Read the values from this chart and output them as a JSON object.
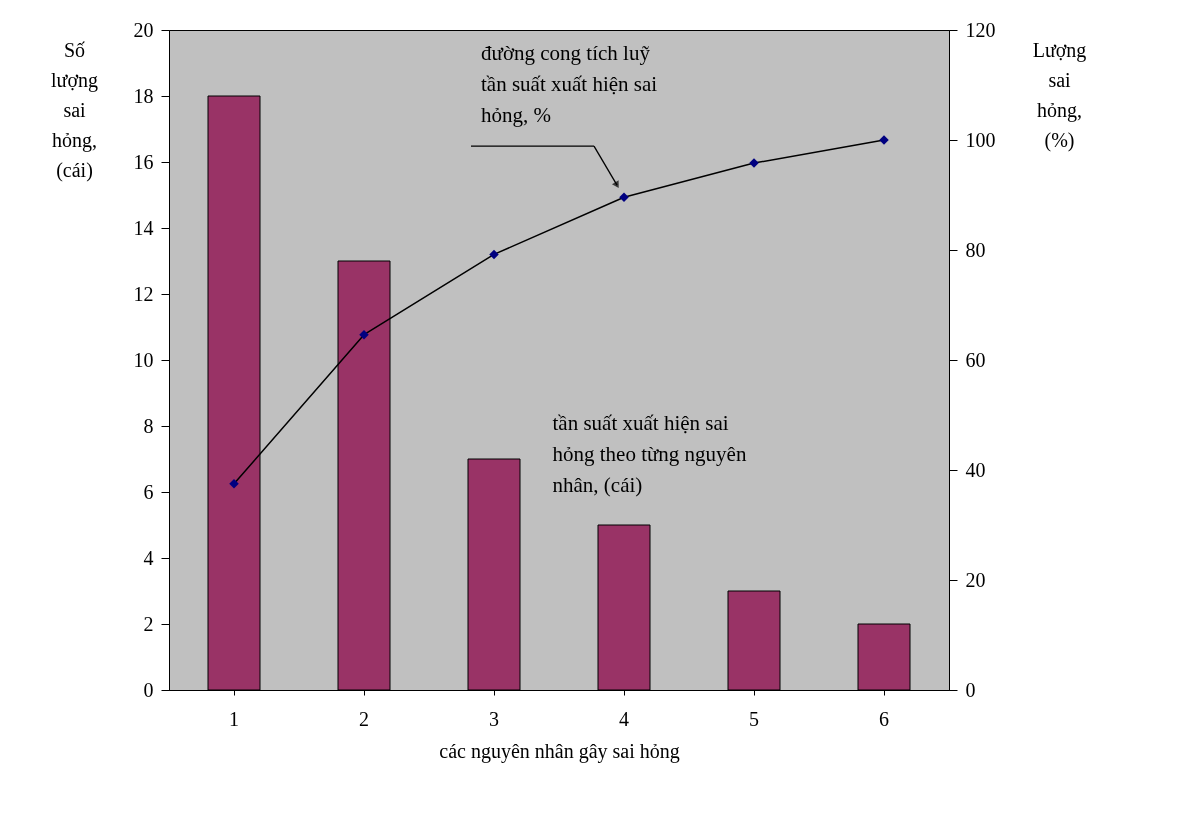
{
  "chart_data": {
    "type": "bar",
    "xlabel": "các nguyên nhân gây sai hỏng",
    "ylabel": "Số lượng sai hỏng, (cái)",
    "y2label": "Lượng sai hỏng, (%)",
    "categories": [
      "1",
      "2",
      "3",
      "4",
      "5",
      "6"
    ],
    "series": [
      {
        "name": "tần suất xuất hiện sai hỏng theo từng nguyên nhân, (cái)",
        "color": "#993366",
        "values": [
          18,
          13,
          7,
          5,
          3,
          2
        ]
      },
      {
        "name": "đường cong tích luỹ tần suất xuất hiện sai hỏng, %",
        "type": "line",
        "axis": "y2",
        "color": "#000080",
        "marker": "diamond",
        "values": [
          37.5,
          64.6,
          79.2,
          89.6,
          95.8,
          100
        ]
      }
    ],
    "ylim": [
      0,
      20
    ],
    "yticks": [
      0,
      2,
      4,
      6,
      8,
      10,
      12,
      14,
      16,
      18,
      20
    ],
    "y2lim": [
      0,
      120
    ],
    "y2ticks": [
      0,
      20,
      40,
      60,
      80,
      100,
      120
    ],
    "grid": false,
    "legend": false
  }
}
